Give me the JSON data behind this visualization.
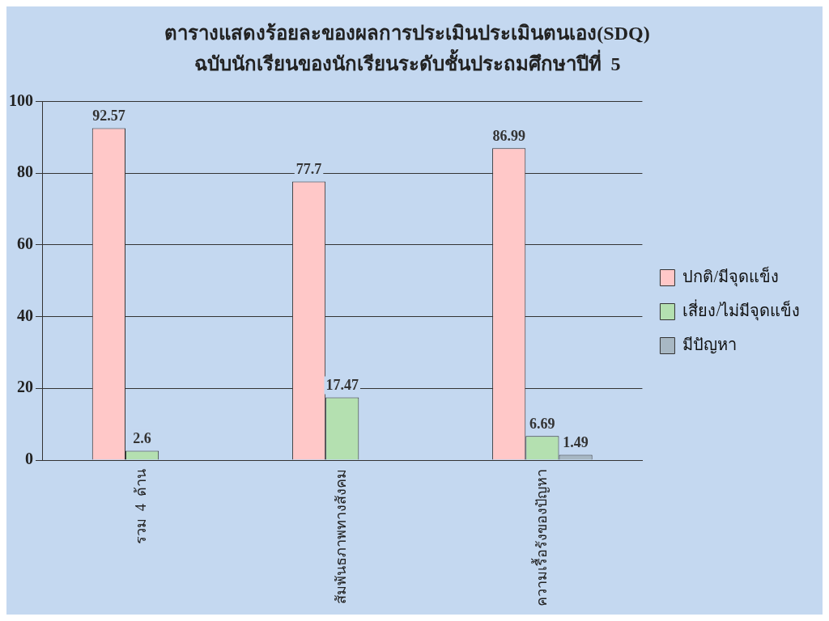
{
  "chart_data": {
    "type": "bar",
    "title": "ตารางแสดงร้อยละของผลการประเมินประเมินตนเอง(SDQ)",
    "subtitle": "ฉบับนักเรียนของนักเรียนระดับชั้นประถมศึกษาปีที่  5",
    "categories": [
      "รวม  4  ด้าน",
      "สัมพันธภาพทางสังคม",
      "ความเรื้อรังของปัญหา"
    ],
    "series": [
      {
        "name": "ปกติ/มีจุดแข็ง",
        "color": "#ffc8c8",
        "values": [
          92.57,
          77.7,
          86.99
        ]
      },
      {
        "name": "เสี่ยง/ไม่มีจุดแข็ง",
        "color": "#b4e0b0",
        "values": [
          2.6,
          17.47,
          6.69
        ]
      },
      {
        "name": "มีปัญหา",
        "color": "#a8b8c4",
        "values": [
          null,
          null,
          1.49
        ]
      }
    ],
    "ylim": [
      0,
      100
    ],
    "yticks": [
      0,
      20,
      40,
      60,
      80,
      100
    ],
    "grid": "y",
    "legend": "right",
    "data_labels": true
  }
}
